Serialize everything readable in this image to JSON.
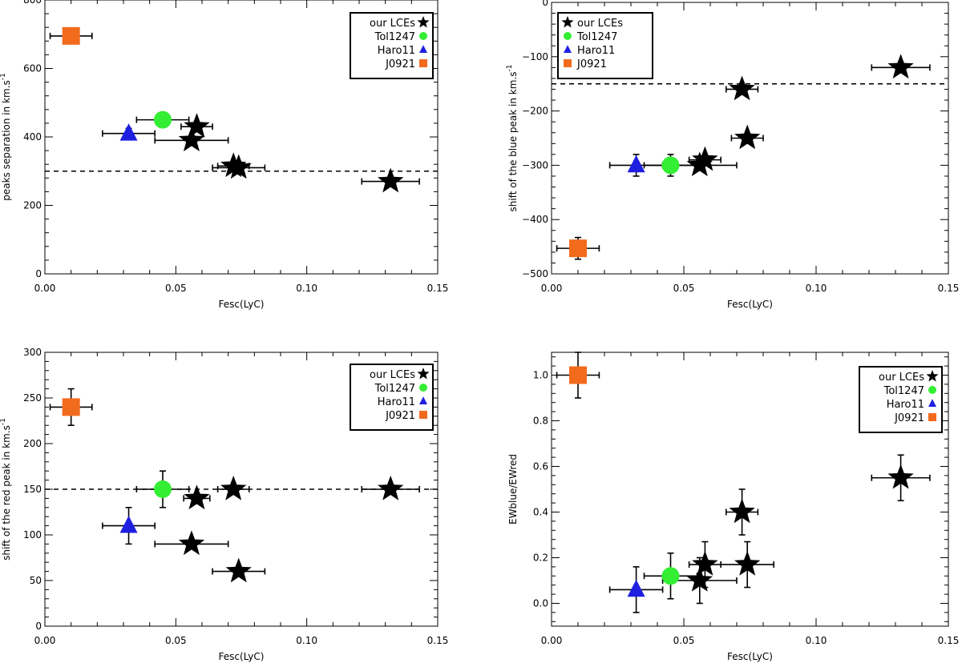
{
  "colors": {
    "lces": "#000000",
    "tol1247": "#33ee33",
    "haro11": "#1f1fe0",
    "j0921": "#f26b1d",
    "axis": "#000000"
  },
  "chart_data": [
    {
      "type": "scatter",
      "panel": "top-left",
      "xlabel": "Fesc(LyC)",
      "ylabel": "peaks separation in km.s",
      "ylabel_sup": "-1",
      "xlim": [
        0,
        0.15
      ],
      "ylim": [
        0,
        800
      ],
      "xticks": [
        "0.00",
        "0.05",
        "0.10",
        "0.15"
      ],
      "xtick_values": [
        0,
        0.05,
        0.1,
        0.15
      ],
      "yticks": [
        "0",
        "200",
        "400",
        "600",
        "800"
      ],
      "ytick_values": [
        0,
        200,
        400,
        600,
        800
      ],
      "hline": 300,
      "legend_position": "top-right",
      "legend_top": true,
      "series": [
        {
          "name": "our LCEs",
          "marker": "star",
          "color": "#000000",
          "points": [
            {
              "x": 0.058,
              "y": 430,
              "xerr": 0.006,
              "yerr": 0
            },
            {
              "x": 0.056,
              "y": 390,
              "xerr": 0.014,
              "yerr": 0
            },
            {
              "x": 0.072,
              "y": 315,
              "xerr": 0.006,
              "yerr": 0
            },
            {
              "x": 0.074,
              "y": 310,
              "xerr": 0.01,
              "yerr": 0
            },
            {
              "x": 0.132,
              "y": 270,
              "xerr": 0.011,
              "yerr": 0
            }
          ]
        },
        {
          "name": "Tol1247",
          "marker": "circle",
          "color": "#33ee33",
          "points": [
            {
              "x": 0.045,
              "y": 450,
              "xerr": 0.01,
              "yerr": 0
            }
          ]
        },
        {
          "name": "Haro11",
          "marker": "triangle",
          "color": "#1f1fe0",
          "points": [
            {
              "x": 0.032,
              "y": 410,
              "xerr": 0.01,
              "yerr": 15
            }
          ]
        },
        {
          "name": "J0921",
          "marker": "square",
          "color": "#f26b1d",
          "points": [
            {
              "x": 0.01,
              "y": 695,
              "xerr": 0.008,
              "yerr": 0
            }
          ]
        }
      ]
    },
    {
      "type": "scatter",
      "panel": "top-right",
      "xlabel": "Fesc(LyC)",
      "ylabel": "shift of the blue peak in km.s",
      "ylabel_sup": "-1",
      "xlim": [
        0,
        0.15
      ],
      "ylim": [
        -500,
        0
      ],
      "xticks": [
        "0.00",
        "0.05",
        "0.10",
        "0.15"
      ],
      "xtick_values": [
        0,
        0.05,
        0.1,
        0.15
      ],
      "yticks": [
        "-500",
        "-400",
        "-300",
        "-200",
        "-100",
        "0"
      ],
      "ytick_values": [
        -500,
        -400,
        -300,
        -200,
        -100,
        0
      ],
      "hline": -150,
      "legend_position": "top-left",
      "legend_top": true,
      "series": [
        {
          "name": "our LCEs",
          "marker": "star",
          "color": "#000000",
          "points": [
            {
              "x": 0.058,
              "y": -290,
              "xerr": 0.006,
              "yerr": 0
            },
            {
              "x": 0.056,
              "y": -300,
              "xerr": 0.014,
              "yerr": 0
            },
            {
              "x": 0.072,
              "y": -160,
              "xerr": 0.006,
              "yerr": 0
            },
            {
              "x": 0.074,
              "y": -250,
              "xerr": 0.006,
              "yerr": 0
            },
            {
              "x": 0.132,
              "y": -120,
              "xerr": 0.011,
              "yerr": 0
            }
          ]
        },
        {
          "name": "Tol1247",
          "marker": "circle",
          "color": "#33ee33",
          "points": [
            {
              "x": 0.045,
              "y": -300,
              "xerr": 0.01,
              "yerr": 20
            }
          ]
        },
        {
          "name": "Haro11",
          "marker": "triangle",
          "color": "#1f1fe0",
          "points": [
            {
              "x": 0.032,
              "y": -300,
              "xerr": 0.01,
              "yerr": 20
            }
          ]
        },
        {
          "name": "J0921",
          "marker": "square",
          "color": "#f26b1d",
          "points": [
            {
              "x": 0.01,
              "y": -453,
              "xerr": 0.008,
              "yerr": 20
            }
          ]
        }
      ]
    },
    {
      "type": "scatter",
      "panel": "bottom-left",
      "xlabel": "Fesc(LyC)",
      "ylabel": "shift of the red peak in km.s",
      "ylabel_sup": "-1",
      "xlim": [
        0,
        0.15
      ],
      "ylim": [
        0,
        300
      ],
      "xticks": [
        "0.00",
        "0.05",
        "0.10",
        "0.15"
      ],
      "xtick_values": [
        0,
        0.05,
        0.1,
        0.15
      ],
      "yticks": [
        "0",
        "50",
        "100",
        "150",
        "200",
        "250",
        "300"
      ],
      "ytick_values": [
        0,
        50,
        100,
        150,
        200,
        250,
        300
      ],
      "hline": 150,
      "legend_position": "top-right",
      "legend_top": true,
      "series": [
        {
          "name": "our LCEs",
          "marker": "star",
          "color": "#000000",
          "points": [
            {
              "x": 0.058,
              "y": 140,
              "xerr": 0.005,
              "yerr": 0
            },
            {
              "x": 0.056,
              "y": 90,
              "xerr": 0.014,
              "yerr": 0
            },
            {
              "x": 0.072,
              "y": 150,
              "xerr": 0.006,
              "yerr": 0
            },
            {
              "x": 0.074,
              "y": 60,
              "xerr": 0.01,
              "yerr": 0
            },
            {
              "x": 0.132,
              "y": 150,
              "xerr": 0.011,
              "yerr": 0
            }
          ]
        },
        {
          "name": "Tol1247",
          "marker": "circle",
          "color": "#33ee33",
          "points": [
            {
              "x": 0.045,
              "y": 150,
              "xerr": 0.01,
              "yerr": 20
            }
          ]
        },
        {
          "name": "Haro11",
          "marker": "triangle",
          "color": "#1f1fe0",
          "points": [
            {
              "x": 0.032,
              "y": 110,
              "xerr": 0.01,
              "yerr": 20
            }
          ]
        },
        {
          "name": "J0921",
          "marker": "square",
          "color": "#f26b1d",
          "points": [
            {
              "x": 0.01,
              "y": 240,
              "xerr": 0.008,
              "yerr": 20
            }
          ]
        }
      ]
    },
    {
      "type": "scatter",
      "panel": "bottom-right",
      "xlabel": "Fesc(LyC)",
      "ylabel": "EWblue/EWred",
      "ylabel_sup": "",
      "xlim": [
        0,
        0.15
      ],
      "ylim": [
        -0.1,
        1.1
      ],
      "xticks": [
        "0.00",
        "0.05",
        "0.10",
        "0.15"
      ],
      "xtick_values": [
        0,
        0.05,
        0.1,
        0.15
      ],
      "yticks": [
        "0.0",
        "0.2",
        "0.4",
        "0.6",
        "0.8",
        "1.0"
      ],
      "ytick_values": [
        0,
        0.2,
        0.4,
        0.6,
        0.8,
        1.0
      ],
      "hline": null,
      "legend_position": "upper-right",
      "legend_top": false,
      "series": [
        {
          "name": "our LCEs",
          "marker": "star",
          "color": "#000000",
          "points": [
            {
              "x": 0.058,
              "y": 0.17,
              "xerr": 0.006,
              "yerr": 0.1
            },
            {
              "x": 0.056,
              "y": 0.1,
              "xerr": 0.014,
              "yerr": 0.1
            },
            {
              "x": 0.072,
              "y": 0.4,
              "xerr": 0.006,
              "yerr": 0.1
            },
            {
              "x": 0.074,
              "y": 0.17,
              "xerr": 0.01,
              "yerr": 0.1
            },
            {
              "x": 0.132,
              "y": 0.55,
              "xerr": 0.011,
              "yerr": 0.1
            }
          ]
        },
        {
          "name": "Tol1247",
          "marker": "circle",
          "color": "#33ee33",
          "points": [
            {
              "x": 0.045,
              "y": 0.12,
              "xerr": 0.01,
              "yerr": 0.1
            }
          ]
        },
        {
          "name": "Haro11",
          "marker": "triangle",
          "color": "#1f1fe0",
          "points": [
            {
              "x": 0.032,
              "y": 0.06,
              "xerr": 0.01,
              "yerr": 0.1
            }
          ]
        },
        {
          "name": "J0921",
          "marker": "square",
          "color": "#f26b1d",
          "points": [
            {
              "x": 0.01,
              "y": 1.0,
              "xerr": 0.008,
              "yerr": 0.1
            }
          ]
        }
      ]
    }
  ]
}
